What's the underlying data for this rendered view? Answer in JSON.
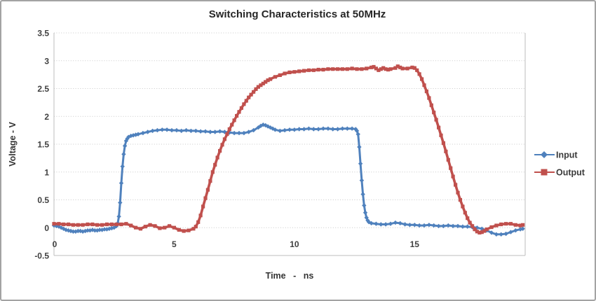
{
  "colors": {
    "input_series": "#4f81bd",
    "output_series": "#c0504d",
    "gridline": "#c9c9c9",
    "plot_border": "#bdbdbd",
    "title_text": "#262626",
    "tick_text": "#404040"
  },
  "legend": {
    "position": "right",
    "items": [
      {
        "label": "Input",
        "marker": "diamond",
        "color": "#4f81bd"
      },
      {
        "label": "Output",
        "marker": "square",
        "color": "#c0504d"
      }
    ]
  },
  "chart_data": {
    "type": "line",
    "title": "Switching Characteristics at 50MHz",
    "xlabel": "Time - ns",
    "ylabel": "Voltage - V",
    "xlim": [
      0,
      19.6
    ],
    "ylim": [
      -0.5,
      3.5
    ],
    "x_ticks": [
      0,
      5,
      10,
      15
    ],
    "y_ticks": [
      3.5,
      3,
      2.5,
      2,
      1.5,
      1,
      0.5,
      0,
      -0.5
    ],
    "grid": true,
    "legend_position": "right",
    "series": [
      {
        "name": "Input",
        "color": "#4f81bd",
        "marker": "diamond",
        "points": [
          [
            0,
            0.04
          ],
          [
            0.1,
            0.03
          ],
          [
            0.2,
            0.02
          ],
          [
            0.3,
            0
          ],
          [
            0.4,
            -0.02
          ],
          [
            0.5,
            -0.04
          ],
          [
            0.6,
            -0.05
          ],
          [
            0.7,
            -0.06
          ],
          [
            0.8,
            -0.07
          ],
          [
            0.9,
            -0.07
          ],
          [
            1.0,
            -0.06
          ],
          [
            1.1,
            -0.06
          ],
          [
            1.2,
            -0.07
          ],
          [
            1.3,
            -0.06
          ],
          [
            1.4,
            -0.05
          ],
          [
            1.5,
            -0.05
          ],
          [
            1.6,
            -0.04
          ],
          [
            1.7,
            -0.05
          ],
          [
            1.8,
            -0.05
          ],
          [
            1.9,
            -0.04
          ],
          [
            2.0,
            -0.04
          ],
          [
            2.1,
            -0.03
          ],
          [
            2.2,
            -0.03
          ],
          [
            2.3,
            -0.02
          ],
          [
            2.4,
            -0.01
          ],
          [
            2.5,
            0
          ],
          [
            2.6,
            0.03
          ],
          [
            2.65,
            0.08
          ],
          [
            2.7,
            0.2
          ],
          [
            2.75,
            0.45
          ],
          [
            2.8,
            0.8
          ],
          [
            2.85,
            1.1
          ],
          [
            2.9,
            1.32
          ],
          [
            2.95,
            1.47
          ],
          [
            3.0,
            1.56
          ],
          [
            3.05,
            1.6
          ],
          [
            3.1,
            1.63
          ],
          [
            3.2,
            1.65
          ],
          [
            3.3,
            1.66
          ],
          [
            3.4,
            1.67
          ],
          [
            3.5,
            1.68
          ],
          [
            3.7,
            1.7
          ],
          [
            3.9,
            1.72
          ],
          [
            4.1,
            1.74
          ],
          [
            4.3,
            1.75
          ],
          [
            4.5,
            1.76
          ],
          [
            4.7,
            1.76
          ],
          [
            4.9,
            1.75
          ],
          [
            5.1,
            1.75
          ],
          [
            5.3,
            1.74
          ],
          [
            5.5,
            1.75
          ],
          [
            5.7,
            1.74
          ],
          [
            5.9,
            1.74
          ],
          [
            6.1,
            1.73
          ],
          [
            6.3,
            1.73
          ],
          [
            6.5,
            1.72
          ],
          [
            6.7,
            1.72
          ],
          [
            6.9,
            1.73
          ],
          [
            7.1,
            1.72
          ],
          [
            7.3,
            1.71
          ],
          [
            7.5,
            1.7
          ],
          [
            7.7,
            1.7
          ],
          [
            7.9,
            1.7
          ],
          [
            8.1,
            1.72
          ],
          [
            8.3,
            1.75
          ],
          [
            8.5,
            1.8
          ],
          [
            8.6,
            1.83
          ],
          [
            8.7,
            1.85
          ],
          [
            8.8,
            1.84
          ],
          [
            8.9,
            1.82
          ],
          [
            9.0,
            1.8
          ],
          [
            9.1,
            1.78
          ],
          [
            9.2,
            1.76
          ],
          [
            9.4,
            1.74
          ],
          [
            9.6,
            1.75
          ],
          [
            9.8,
            1.76
          ],
          [
            10.0,
            1.76
          ],
          [
            10.2,
            1.77
          ],
          [
            10.4,
            1.77
          ],
          [
            10.6,
            1.78
          ],
          [
            10.8,
            1.77
          ],
          [
            11.0,
            1.77
          ],
          [
            11.2,
            1.78
          ],
          [
            11.4,
            1.78
          ],
          [
            11.6,
            1.77
          ],
          [
            11.8,
            1.77
          ],
          [
            12.0,
            1.78
          ],
          [
            12.2,
            1.78
          ],
          [
            12.4,
            1.78
          ],
          [
            12.55,
            1.77
          ],
          [
            12.6,
            1.74
          ],
          [
            12.65,
            1.68
          ],
          [
            12.7,
            1.45
          ],
          [
            12.75,
            1.15
          ],
          [
            12.8,
            0.85
          ],
          [
            12.85,
            0.6
          ],
          [
            12.9,
            0.4
          ],
          [
            12.95,
            0.27
          ],
          [
            13.0,
            0.18
          ],
          [
            13.05,
            0.13
          ],
          [
            13.1,
            0.1
          ],
          [
            13.2,
            0.08
          ],
          [
            13.4,
            0.07
          ],
          [
            13.6,
            0.06
          ],
          [
            13.8,
            0.06
          ],
          [
            14.0,
            0.07
          ],
          [
            14.2,
            0.09
          ],
          [
            14.4,
            0.08
          ],
          [
            14.6,
            0.06
          ],
          [
            14.8,
            0.05
          ],
          [
            15.0,
            0.05
          ],
          [
            15.2,
            0.04
          ],
          [
            15.4,
            0.04
          ],
          [
            15.6,
            0.05
          ],
          [
            15.8,
            0.04
          ],
          [
            16.0,
            0.03
          ],
          [
            16.2,
            0.03
          ],
          [
            16.4,
            0.04
          ],
          [
            16.6,
            0.03
          ],
          [
            16.8,
            0.03
          ],
          [
            17.0,
            0.02
          ],
          [
            17.2,
            0.02
          ],
          [
            17.4,
            0.01
          ],
          [
            17.6,
            0
          ],
          [
            17.8,
            -0.02
          ],
          [
            18.0,
            -0.05
          ],
          [
            18.2,
            -0.09
          ],
          [
            18.4,
            -0.12
          ],
          [
            18.6,
            -0.12
          ],
          [
            18.8,
            -0.11
          ],
          [
            19.0,
            -0.08
          ],
          [
            19.2,
            -0.05
          ],
          [
            19.4,
            -0.03
          ],
          [
            19.5,
            -0.02
          ]
        ]
      },
      {
        "name": "Output",
        "color": "#c0504d",
        "marker": "square",
        "points": [
          [
            0,
            0.07
          ],
          [
            0.2,
            0.07
          ],
          [
            0.4,
            0.06
          ],
          [
            0.6,
            0.06
          ],
          [
            0.8,
            0.05
          ],
          [
            1.0,
            0.05
          ],
          [
            1.2,
            0.05
          ],
          [
            1.4,
            0.06
          ],
          [
            1.6,
            0.06
          ],
          [
            1.8,
            0.05
          ],
          [
            2.0,
            0.05
          ],
          [
            2.2,
            0.06
          ],
          [
            2.4,
            0.06
          ],
          [
            2.6,
            0.06
          ],
          [
            2.8,
            0.06
          ],
          [
            3.0,
            0.07
          ],
          [
            3.2,
            0.04
          ],
          [
            3.4,
            0
          ],
          [
            3.6,
            -0.02
          ],
          [
            3.8,
            0.02
          ],
          [
            4.0,
            0.05
          ],
          [
            4.2,
            0.03
          ],
          [
            4.4,
            -0.01
          ],
          [
            4.6,
            0
          ],
          [
            4.8,
            0.03
          ],
          [
            5.0,
            0
          ],
          [
            5.2,
            -0.04
          ],
          [
            5.4,
            -0.06
          ],
          [
            5.6,
            -0.05
          ],
          [
            5.8,
            -0.02
          ],
          [
            5.9,
            0.02
          ],
          [
            6.0,
            0.1
          ],
          [
            6.1,
            0.22
          ],
          [
            6.2,
            0.38
          ],
          [
            6.3,
            0.53
          ],
          [
            6.4,
            0.68
          ],
          [
            6.5,
            0.84
          ],
          [
            6.6,
            1.0
          ],
          [
            6.7,
            1.13
          ],
          [
            6.8,
            1.26
          ],
          [
            6.9,
            1.38
          ],
          [
            7.0,
            1.49
          ],
          [
            7.1,
            1.59
          ],
          [
            7.2,
            1.68
          ],
          [
            7.3,
            1.77
          ],
          [
            7.4,
            1.85
          ],
          [
            7.5,
            1.93
          ],
          [
            7.6,
            2.01
          ],
          [
            7.7,
            2.08
          ],
          [
            7.8,
            2.15
          ],
          [
            7.9,
            2.22
          ],
          [
            8.0,
            2.28
          ],
          [
            8.1,
            2.34
          ],
          [
            8.2,
            2.39
          ],
          [
            8.3,
            2.44
          ],
          [
            8.4,
            2.49
          ],
          [
            8.5,
            2.53
          ],
          [
            8.6,
            2.56
          ],
          [
            8.7,
            2.59
          ],
          [
            8.8,
            2.62
          ],
          [
            8.9,
            2.65
          ],
          [
            9.0,
            2.67
          ],
          [
            9.2,
            2.71
          ],
          [
            9.4,
            2.74
          ],
          [
            9.6,
            2.77
          ],
          [
            9.8,
            2.79
          ],
          [
            10.0,
            2.8
          ],
          [
            10.2,
            2.81
          ],
          [
            10.4,
            2.82
          ],
          [
            10.6,
            2.83
          ],
          [
            10.8,
            2.83
          ],
          [
            11.0,
            2.84
          ],
          [
            11.2,
            2.84
          ],
          [
            11.4,
            2.85
          ],
          [
            11.6,
            2.85
          ],
          [
            11.8,
            2.85
          ],
          [
            12.0,
            2.85
          ],
          [
            12.2,
            2.85
          ],
          [
            12.4,
            2.86
          ],
          [
            12.6,
            2.85
          ],
          [
            12.8,
            2.85
          ],
          [
            13.0,
            2.86
          ],
          [
            13.2,
            2.88
          ],
          [
            13.3,
            2.89
          ],
          [
            13.4,
            2.86
          ],
          [
            13.5,
            2.83
          ],
          [
            13.6,
            2.85
          ],
          [
            13.7,
            2.87
          ],
          [
            13.8,
            2.85
          ],
          [
            13.9,
            2.84
          ],
          [
            14.0,
            2.85
          ],
          [
            14.2,
            2.87
          ],
          [
            14.3,
            2.9
          ],
          [
            14.4,
            2.88
          ],
          [
            14.5,
            2.86
          ],
          [
            14.7,
            2.86
          ],
          [
            14.9,
            2.88
          ],
          [
            15.0,
            2.87
          ],
          [
            15.1,
            2.83
          ],
          [
            15.2,
            2.76
          ],
          [
            15.3,
            2.67
          ],
          [
            15.4,
            2.56
          ],
          [
            15.5,
            2.45
          ],
          [
            15.6,
            2.33
          ],
          [
            15.7,
            2.2
          ],
          [
            15.8,
            2.07
          ],
          [
            15.9,
            1.94
          ],
          [
            16.0,
            1.8
          ],
          [
            16.1,
            1.66
          ],
          [
            16.2,
            1.52
          ],
          [
            16.3,
            1.37
          ],
          [
            16.4,
            1.22
          ],
          [
            16.5,
            1.07
          ],
          [
            16.6,
            0.92
          ],
          [
            16.7,
            0.77
          ],
          [
            16.8,
            0.63
          ],
          [
            16.9,
            0.5
          ],
          [
            17.0,
            0.38
          ],
          [
            17.1,
            0.27
          ],
          [
            17.2,
            0.17
          ],
          [
            17.3,
            0.09
          ],
          [
            17.4,
            0.03
          ],
          [
            17.5,
            -0.03
          ],
          [
            17.6,
            -0.07
          ],
          [
            17.7,
            -0.09
          ],
          [
            17.8,
            -0.08
          ],
          [
            17.9,
            -0.06
          ],
          [
            18.0,
            -0.03
          ],
          [
            18.2,
            0.01
          ],
          [
            18.4,
            0.04
          ],
          [
            18.6,
            0.06
          ],
          [
            18.8,
            0.07
          ],
          [
            19.0,
            0.07
          ],
          [
            19.2,
            0.05
          ],
          [
            19.4,
            0.04
          ],
          [
            19.5,
            0.05
          ]
        ]
      }
    ]
  }
}
